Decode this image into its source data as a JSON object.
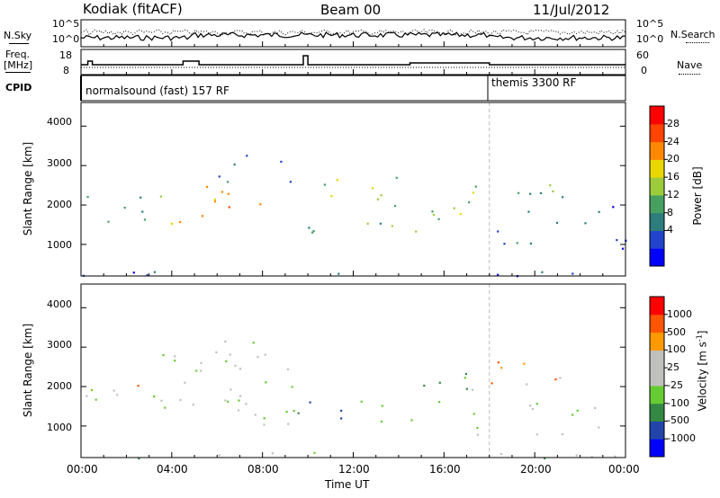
{
  "header": {
    "radar": "Kodiak (fitACF)",
    "beam": "Beam 00",
    "date": "11/Jul/2012"
  },
  "top_panels": {
    "nsky_label": "N.Sky",
    "nsky_ticks": [
      "10^5",
      "10^0"
    ],
    "nsearch_label": "N.Search",
    "nsearch_ticks": [
      "10^5",
      "10^0"
    ],
    "freq_label_line1": "Freq.",
    "freq_label_line2": "[MHz]",
    "freq_ticks": [
      "18",
      "8"
    ],
    "nave_label": "Nave",
    "nave_ticks": [
      "60",
      "0"
    ],
    "cpid_label": "CPID",
    "cpid_entries": [
      {
        "text": "normalsound (fast) 157 RF",
        "start_hour": 0
      },
      {
        "text": "themis 3300 RF",
        "start_hour": 18.0
      }
    ]
  },
  "chart_data": [
    {
      "type": "heatmap",
      "name": "power",
      "xlabel": "Time UT",
      "ylabel": "Slant Range [km]",
      "xlim": [
        0,
        24
      ],
      "ylim": [
        200,
        4600
      ],
      "x_ticks": [
        "00:00",
        "04:00",
        "08:00",
        "12:00",
        "16:00",
        "20:00",
        "00:00"
      ],
      "y_ticks": [
        1000,
        2000,
        3000,
        4000
      ],
      "colorbar": {
        "label": "Power [dB]",
        "ticks": [
          "28",
          "24",
          "20",
          "16",
          "12",
          "8",
          "4"
        ],
        "colors": [
          "#0000ff",
          "#2244cc",
          "#2e7d7d",
          "#48a060",
          "#9ccc3c",
          "#e8d800",
          "#ff8800",
          "#ff4400",
          "#ff0000"
        ]
      },
      "echo_bands": [
        {
          "t0": 0.2,
          "t1": 3.6,
          "r0": 1600,
          "r1": 2400,
          "level": 3
        },
        {
          "t0": 3.5,
          "t1": 5.5,
          "r0": 1400,
          "r1": 1900,
          "level": 5
        },
        {
          "t0": 5.5,
          "t1": 9.5,
          "r0": 1800,
          "r1": 2500,
          "level": 6
        },
        {
          "t0": 6.0,
          "t1": 9.2,
          "r0": 2600,
          "r1": 3400,
          "level": 2
        },
        {
          "t0": 9.5,
          "t1": 15.0,
          "r0": 1200,
          "r1": 1700,
          "level": 3
        },
        {
          "t0": 10.0,
          "t1": 14.0,
          "r0": 2000,
          "r1": 2800,
          "level": 4
        },
        {
          "t0": 15.0,
          "t1": 18.0,
          "r0": 1500,
          "r1": 2500,
          "level": 4
        },
        {
          "t0": 18.0,
          "t1": 21.5,
          "r0": 1000,
          "r1": 1600,
          "level": 2
        },
        {
          "t0": 18.0,
          "t1": 21.5,
          "r0": 1800,
          "r1": 2600,
          "level": 3
        },
        {
          "t0": 22.0,
          "t1": 24.0,
          "r0": 800,
          "r1": 2000,
          "level": 1
        },
        {
          "t0": 0.0,
          "t1": 24.0,
          "r0": 200,
          "r1": 350,
          "level": 1
        }
      ]
    },
    {
      "type": "heatmap",
      "name": "velocity",
      "xlabel": "Time UT",
      "ylabel": "Slant Range [km]",
      "xlim": [
        0,
        24
      ],
      "ylim": [
        200,
        4600
      ],
      "x_ticks": [
        "00:00",
        "04:00",
        "08:00",
        "12:00",
        "16:00",
        "20:00",
        "00:00"
      ],
      "y_ticks": [
        1000,
        2000,
        3000,
        4000
      ],
      "colorbar": {
        "label": "Velocity [m s",
        "label_sup": "-1",
        "label_end": "]",
        "ticks": [
          "1000",
          "500",
          "100",
          "25",
          "-25",
          "-100",
          "-500",
          "-1000"
        ],
        "colors": [
          "#0000ff",
          "#2244aa",
          "#338844",
          "#66cc33",
          "#c0c0bc",
          "#c0c0bc",
          "#ff9900",
          "#ff5500",
          "#ff0000"
        ]
      },
      "echo_bands": [
        {
          "t0": 0.2,
          "t1": 3.6,
          "r0": 1600,
          "r1": 2400,
          "level": 4
        },
        {
          "t0": 3.5,
          "t1": 9.5,
          "r0": 1000,
          "r1": 3300,
          "level": 4
        },
        {
          "t0": 0.8,
          "t1": 2.5,
          "r0": 1900,
          "r1": 2200,
          "level": 6
        },
        {
          "t0": 9.5,
          "t1": 15.0,
          "r0": 1100,
          "r1": 1700,
          "level": 2
        },
        {
          "t0": 15.0,
          "t1": 18.0,
          "r0": 1500,
          "r1": 2400,
          "level": 3
        },
        {
          "t0": 18.0,
          "t1": 21.5,
          "r0": 1900,
          "r1": 2700,
          "level": 6
        },
        {
          "t0": 17.0,
          "t1": 23.0,
          "r0": 800,
          "r1": 1600,
          "level": 4
        },
        {
          "t0": 0.0,
          "t1": 24.0,
          "r0": 200,
          "r1": 350,
          "level": 3
        }
      ]
    }
  ],
  "colors": {
    "nsky_line": "#000000",
    "nsearch_dots": "#000000",
    "background": "#ffffff",
    "ground_scatter": "#c0c0bc"
  }
}
